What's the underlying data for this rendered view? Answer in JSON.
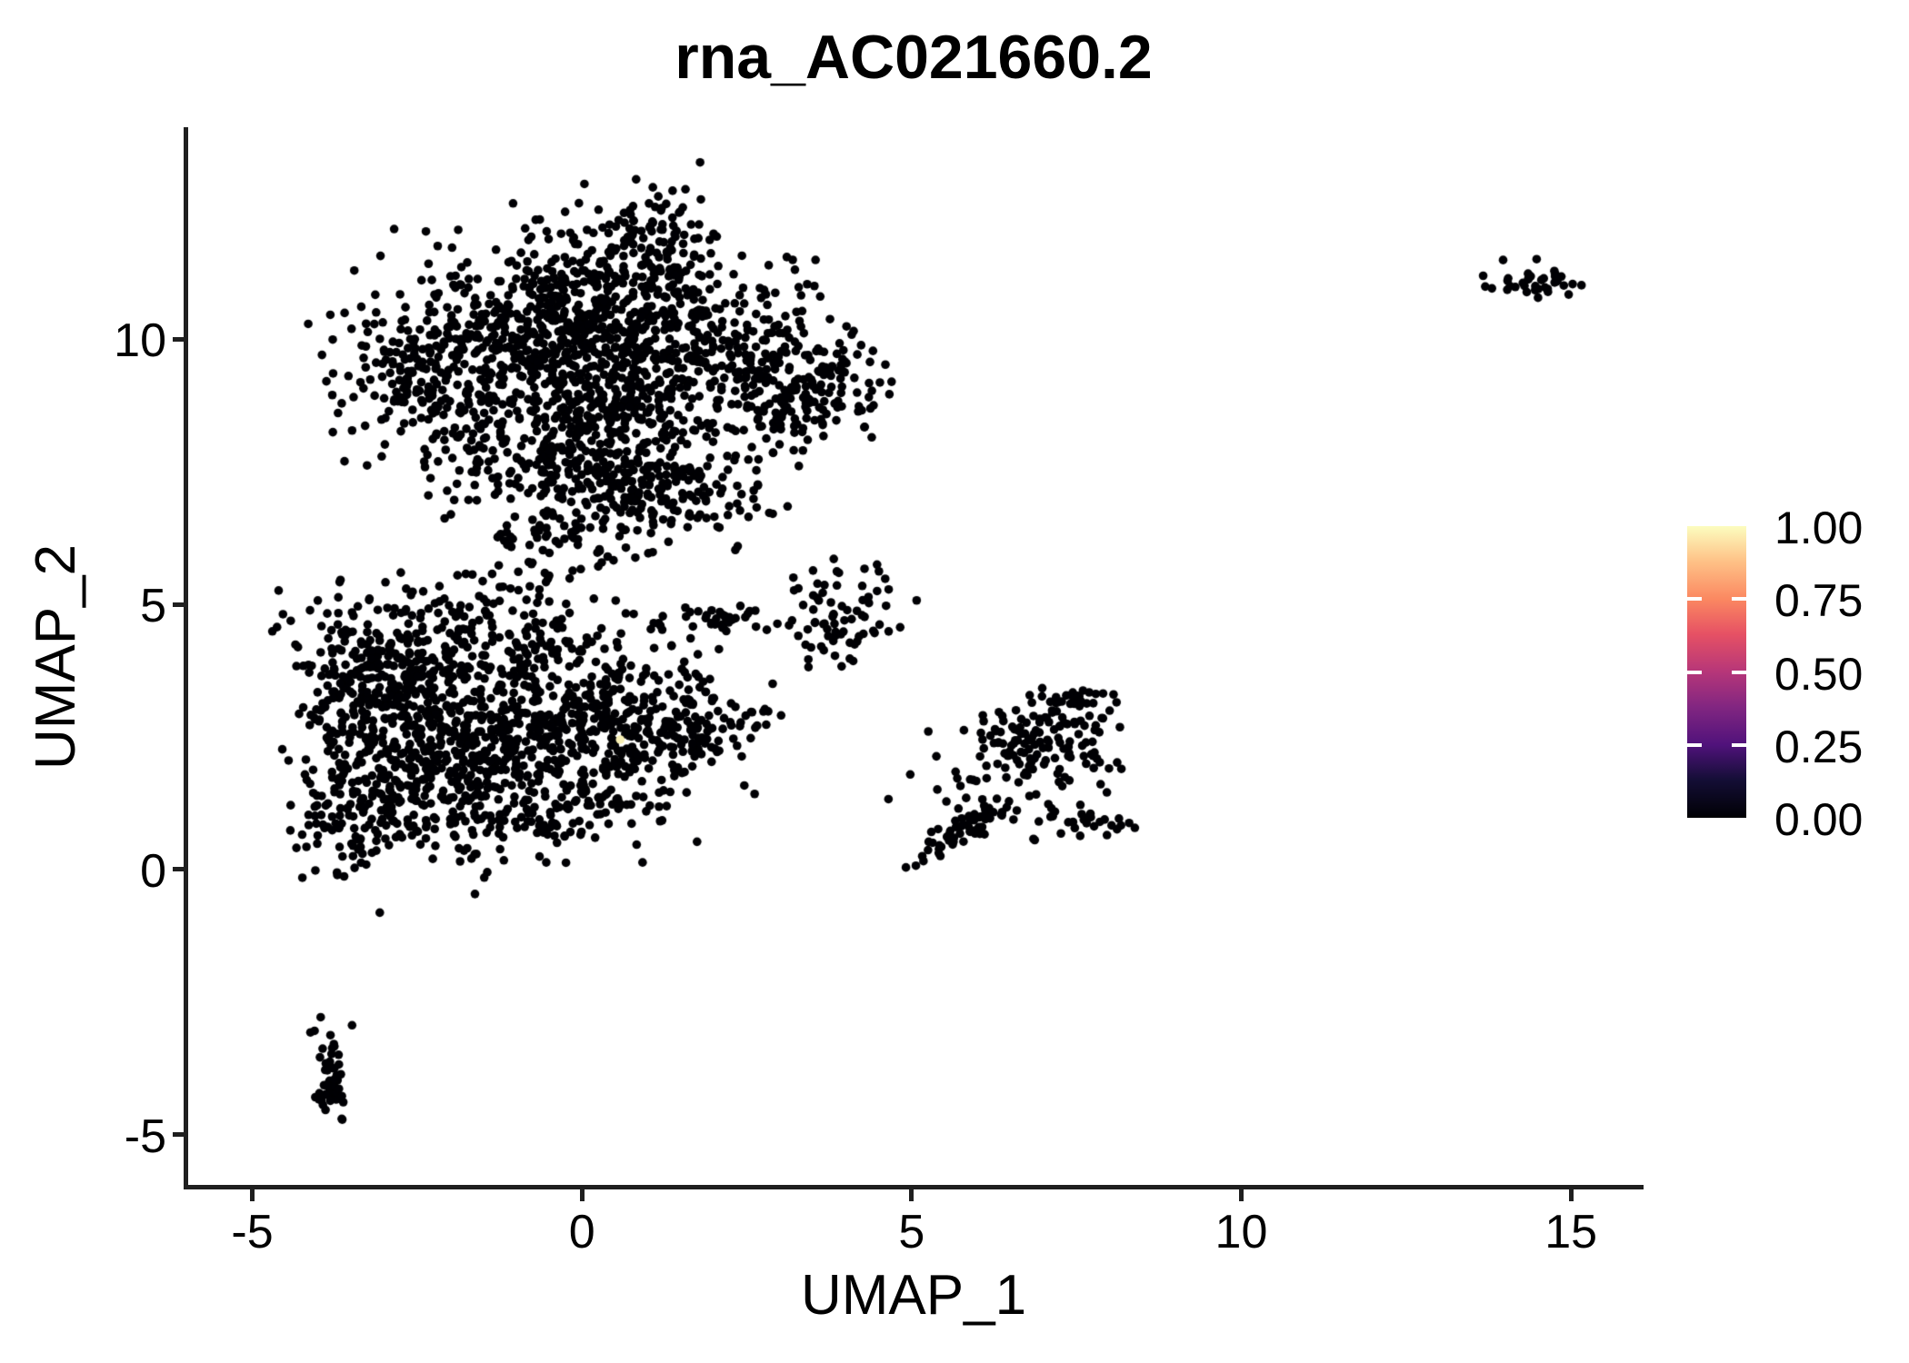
{
  "chart_data": {
    "type": "scatter",
    "title": "rna_AC021660.2",
    "xlabel": "UMAP_1",
    "ylabel": "UMAP_2",
    "xlim": [
      -6.0,
      16.06
    ],
    "ylim": [
      -6.0,
      14.0
    ],
    "x_ticks": [
      {
        "value": -5,
        "label": "-5"
      },
      {
        "value": 0,
        "label": "0"
      },
      {
        "value": 5,
        "label": "5"
      },
      {
        "value": 10,
        "label": "10"
      },
      {
        "value": 15,
        "label": "15"
      }
    ],
    "y_ticks": [
      {
        "value": -5,
        "label": "-5"
      },
      {
        "value": 0,
        "label": "0"
      },
      {
        "value": 5,
        "label": "5"
      },
      {
        "value": 10,
        "label": "10"
      }
    ],
    "grid": false,
    "legend_position": "right",
    "point_color": "#000004",
    "point_radius_px": 4.8,
    "colorbar": {
      "tick_labels": [
        {
          "value": 0.0,
          "label": "0.00"
        },
        {
          "value": 0.25,
          "label": "0.25"
        },
        {
          "value": 0.5,
          "label": "0.50"
        },
        {
          "value": 0.75,
          "label": "0.75"
        },
        {
          "value": 1.0,
          "label": "1.00"
        }
      ],
      "notch_values": [
        0.25,
        0.5,
        0.75
      ],
      "colormap": "magma",
      "stops": [
        {
          "v": 0.0,
          "color": "#000004"
        },
        {
          "v": 0.13,
          "color": "#140e36"
        },
        {
          "v": 0.25,
          "color": "#50127b"
        },
        {
          "v": 0.38,
          "color": "#822681"
        },
        {
          "v": 0.5,
          "color": "#b63679"
        },
        {
          "v": 0.63,
          "color": "#e65164"
        },
        {
          "v": 0.75,
          "color": "#fb8861"
        },
        {
          "v": 0.88,
          "color": "#fec287"
        },
        {
          "v": 1.0,
          "color": "#fcfdbf"
        }
      ]
    },
    "generation_seed": 7,
    "clusters": [
      {
        "name": "upper-left-lobe",
        "cx": -2.2,
        "cy": 9.3,
        "sx": 0.75,
        "sy": 0.85,
        "n": 230
      },
      {
        "name": "upper-left-top",
        "cx": -1.0,
        "cy": 10.2,
        "sx": 0.8,
        "sy": 0.75,
        "n": 260
      },
      {
        "name": "upper-top-mid",
        "cx": 0.35,
        "cy": 10.8,
        "sx": 0.8,
        "sy": 0.75,
        "n": 280
      },
      {
        "name": "upper-peak",
        "cx": 1.1,
        "cy": 12.0,
        "sx": 0.5,
        "sy": 0.4,
        "n": 75
      },
      {
        "name": "upper-mid-right",
        "cx": 1.6,
        "cy": 9.9,
        "sx": 0.9,
        "sy": 0.85,
        "n": 280
      },
      {
        "name": "upper-right-lobe",
        "cx": 2.95,
        "cy": 9.2,
        "sx": 0.6,
        "sy": 0.8,
        "n": 140
      },
      {
        "name": "upper-far-right",
        "cx": 3.9,
        "cy": 9.1,
        "sx": 0.45,
        "sy": 0.5,
        "n": 70
      },
      {
        "name": "upper-center",
        "cx": 0.3,
        "cy": 8.8,
        "sx": 0.9,
        "sy": 0.7,
        "n": 230
      },
      {
        "name": "upper-lower-left",
        "cx": -0.7,
        "cy": 7.8,
        "sx": 0.8,
        "sy": 0.6,
        "n": 150
      },
      {
        "name": "upper-lower-mid",
        "cx": 0.7,
        "cy": 7.3,
        "sx": 0.7,
        "sy": 0.55,
        "n": 120
      },
      {
        "name": "upper-neck",
        "cx": -0.35,
        "cy": 6.4,
        "sx": 0.5,
        "sy": 0.6,
        "n": 75
      },
      {
        "name": "upper-lower-right",
        "cx": 1.8,
        "cy": 7.0,
        "sx": 0.6,
        "sy": 0.5,
        "n": 80
      },
      {
        "name": "lower-left-dense",
        "cx": -3.3,
        "cy": 3.6,
        "sx": 0.55,
        "sy": 0.85,
        "n": 220
      },
      {
        "name": "lower-core",
        "cx": -2.4,
        "cy": 2.8,
        "sx": 0.7,
        "sy": 0.95,
        "n": 300
      },
      {
        "name": "lower-bottom-left",
        "cx": -3.4,
        "cy": 1.1,
        "sx": 0.5,
        "sy": 0.6,
        "n": 130
      },
      {
        "name": "lower-mid-bottom",
        "cx": -1.4,
        "cy": 1.6,
        "sx": 0.85,
        "sy": 0.7,
        "n": 250
      },
      {
        "name": "lower-mid",
        "cx": -0.3,
        "cy": 2.7,
        "sx": 0.9,
        "sy": 0.75,
        "n": 260
      },
      {
        "name": "lower-upper-band",
        "cx": -1.2,
        "cy": 4.4,
        "sx": 1.05,
        "sy": 0.55,
        "n": 180
      },
      {
        "name": "lower-right-wing",
        "cx": 1.0,
        "cy": 2.6,
        "sx": 0.7,
        "sy": 0.55,
        "n": 140
      },
      {
        "name": "lower-right-tip",
        "cx": 1.95,
        "cy": 2.9,
        "sx": 0.55,
        "sy": 0.45,
        "n": 70
      },
      {
        "name": "lower-bottom-edge",
        "cx": 0.3,
        "cy": 1.3,
        "sx": 0.65,
        "sy": 0.4,
        "n": 60
      },
      {
        "name": "mid-streak",
        "cx": 1.9,
        "cy": 4.72,
        "sx": 0.5,
        "sy": 0.14,
        "n": 40
      },
      {
        "name": "small-mid-cluster",
        "cx": 3.95,
        "cy": 4.9,
        "sx": 0.42,
        "sy": 0.48,
        "n": 75
      },
      {
        "name": "right-arm",
        "cx": 5.85,
        "cy": 0.75,
        "sx": 0.55,
        "sy": 0.13,
        "rot": 34,
        "n": 55
      },
      {
        "name": "right-scatter",
        "cx": 6.35,
        "cy": 1.55,
        "sx": 0.55,
        "sy": 0.5,
        "n": 35
      },
      {
        "name": "right-mid-blob-a",
        "cx": 6.65,
        "cy": 2.4,
        "sx": 0.35,
        "sy": 0.3,
        "n": 55
      },
      {
        "name": "right-mid-blob-b",
        "cx": 7.25,
        "cy": 2.45,
        "sx": 0.4,
        "sy": 0.45,
        "n": 75
      },
      {
        "name": "right-upper-blob",
        "cx": 7.65,
        "cy": 3.15,
        "sx": 0.25,
        "sy": 0.3,
        "n": 30
      },
      {
        "name": "right-lower-streak",
        "cx": 7.6,
        "cy": 0.86,
        "sx": 0.38,
        "sy": 0.12,
        "n": 26
      },
      {
        "name": "bottomleft-squiggle",
        "cx": -3.82,
        "cy": -3.9,
        "sx": 0.14,
        "sy": 0.5,
        "n": 50
      },
      {
        "name": "far-right-cluster",
        "cx": 14.5,
        "cy": 11.05,
        "sx": 0.35,
        "sy": 0.13,
        "n": 38
      }
    ],
    "highlight_points": [
      {
        "x": 0.58,
        "y": 2.45,
        "color": "#f8f0b5"
      }
    ]
  }
}
